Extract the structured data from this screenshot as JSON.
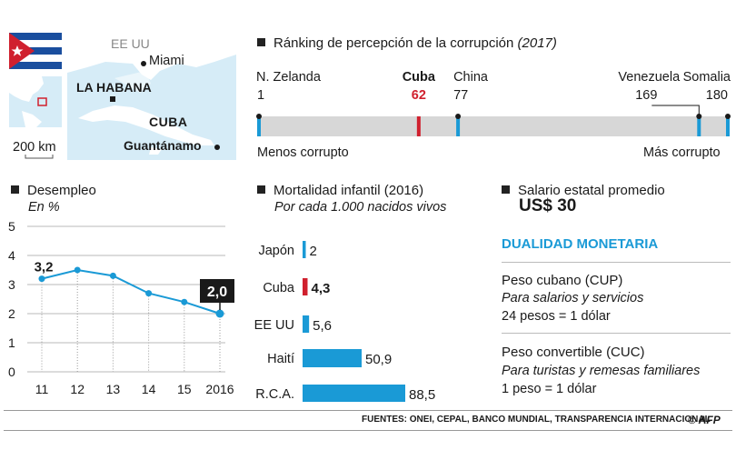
{
  "colors": {
    "accent": "#1a9ad6",
    "cuba_red": "#d0202e",
    "dark": "#1a1a1a",
    "bar_bg": "#d7d7d7",
    "grid": "#b8b8b8",
    "map_water": "#d6ecf7",
    "map_land": "#ffffff"
  },
  "map": {
    "country": "EE UU",
    "capital": "LA HABANA",
    "city1": "Miami",
    "city2": "Guantánamo",
    "cuba_label": "CUBA",
    "scale": "200 km"
  },
  "ranking": {
    "title": "Ránking de percepción de la corrupción",
    "year": "(2017)",
    "left_label": "Menos corrupto",
    "right_label": "Más corrupto",
    "items": [
      {
        "name": "N. Zelanda",
        "rank": 1
      },
      {
        "name": "Cuba",
        "rank": 62
      },
      {
        "name": "China",
        "rank": 77
      },
      {
        "name": "Venezuela",
        "rank": 169
      },
      {
        "name": "Somalia",
        "rank": 180
      }
    ]
  },
  "unemployment": {
    "title": "Desempleo",
    "unit": "En %",
    "y_ticks": [
      "5",
      "4",
      "3",
      "2",
      "1",
      "0"
    ],
    "first_label": "3,2",
    "last_label": "2,0"
  },
  "infant": {
    "title": "Mortalidad infantil (2016)",
    "subtitle": "Por cada 1.000 nacidos vivos"
  },
  "salary": {
    "title": "Salario estatal promedio",
    "value": "US$ 30"
  },
  "currency": {
    "title": "DUALIDAD MONETARIA",
    "cup": {
      "name": "Peso cubano (CUP)",
      "use": "Para salarios y servicios",
      "rate": "24 pesos = 1 dólar"
    },
    "cuc": {
      "name": "Peso convertible (CUC)",
      "use": "Para turistas y remesas familiares",
      "rate": "1 peso = 1 dólar"
    }
  },
  "footer": {
    "sources": "FUENTES: ONEI, CEPAL, BANCO MUNDIAL, TRANSPARENCIA INTERNACIONAL",
    "credit": "© AFP"
  },
  "chart_data": [
    {
      "type": "line",
      "title": "Desempleo",
      "ylabel": "En %",
      "categories": [
        "11",
        "12",
        "13",
        "14",
        "15",
        "2016"
      ],
      "values": [
        3.2,
        3.5,
        3.3,
        2.7,
        2.4,
        2.0
      ],
      "ylim": [
        0,
        5
      ]
    },
    {
      "type": "bar",
      "title": "Mortalidad infantil (2016)",
      "subtitle": "Por cada 1.000 nacidos vivos",
      "categories": [
        "Japón",
        "Cuba",
        "EE UU",
        "Haití",
        "R.C.A."
      ],
      "values": [
        2,
        4.3,
        5.6,
        50.9,
        88.5
      ],
      "labels": [
        "2",
        "4,3",
        "5,6",
        "50,9",
        "88,5"
      ]
    }
  ]
}
